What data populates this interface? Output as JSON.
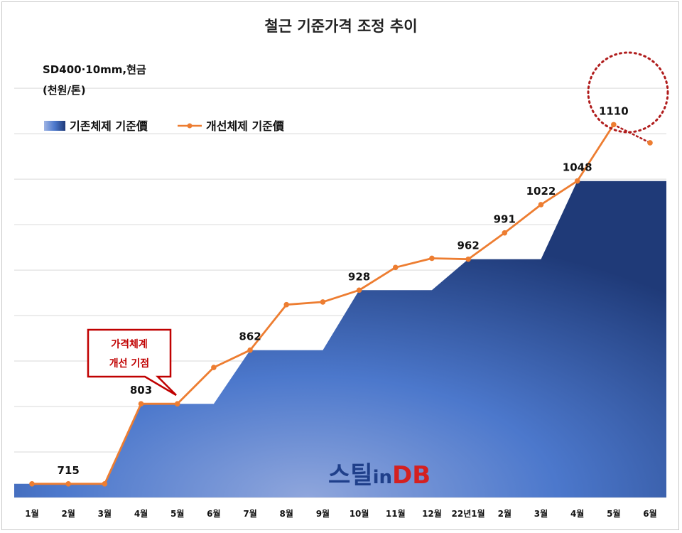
{
  "chart_data": {
    "type": "area+line",
    "title": "철근 기준가격 조정 추이",
    "unit_line1": "SD400·10mm,현금",
    "unit_line2": "(천원/톤)",
    "categories": [
      "1월",
      "2월",
      "3월",
      "4월",
      "5월",
      "6월",
      "7월",
      "8월",
      "9월",
      "10월",
      "11월",
      "12월",
      "22년1월",
      "2월",
      "3월",
      "4월",
      "5월",
      "6월"
    ],
    "ylim": [
      700,
      1190
    ],
    "grid": true,
    "legend_placement": "top-left",
    "series": [
      {
        "name": "기존체제 기준價",
        "kind": "area",
        "values": [
          715,
          715,
          715,
          803,
          803,
          803,
          862,
          862,
          862,
          928,
          928,
          928,
          962,
          962,
          962,
          1048,
          1048,
          1048
        ],
        "color": "#3f6cc4"
      },
      {
        "name": "개선체제 기준價",
        "kind": "line",
        "values": [
          715,
          715,
          715,
          803,
          803,
          843,
          862,
          912,
          915,
          928,
          953,
          963,
          962,
          991,
          1022,
          1048,
          1110,
          1090
        ],
        "color": "#ed7d31",
        "dashed_last_segment": true
      }
    ],
    "data_labels": [
      {
        "index": 1,
        "text": "715"
      },
      {
        "index": 3,
        "text": "803"
      },
      {
        "index": 6,
        "text": "862"
      },
      {
        "index": 9,
        "text": "928"
      },
      {
        "index": 12,
        "text": "962"
      },
      {
        "index": 13,
        "text": "991"
      },
      {
        "index": 14,
        "text": "1022"
      },
      {
        "index": 15,
        "text": "1048"
      },
      {
        "index": 16,
        "text": "1110"
      }
    ],
    "callout": {
      "line1": "가격체계",
      "line2": "개선 기점",
      "index": 4
    }
  },
  "logo": {
    "text1": "스틸",
    "text2": "in",
    "text3": "DB"
  }
}
